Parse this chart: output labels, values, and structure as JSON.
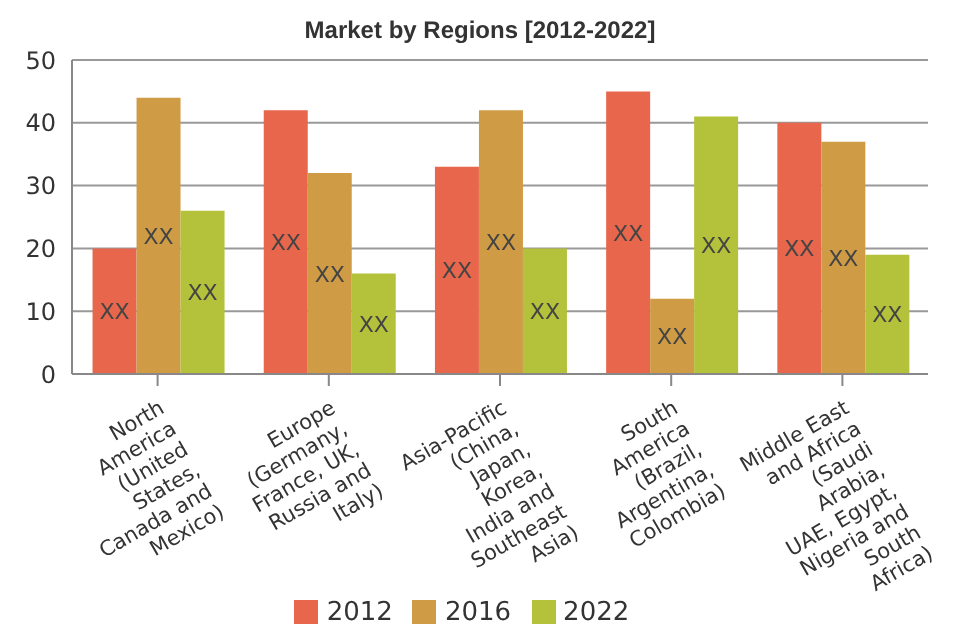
{
  "chart_data": {
    "type": "bar",
    "title": "Market by Regions [2012-2022]",
    "categories": [
      "North America (United States, Canada and Mexico)",
      "Europe (Germany, France, UK, Russia and Italy)",
      "Asia-Pacific (China, Japan, Korea, India and Southeast Asia)",
      "South America (Brazil, Argentina, Colombia)",
      "Middle East and Africa (Saudi Arabia, UAE, Egypt, Nigeria and South Africa)"
    ],
    "series": [
      {
        "name": "2012",
        "color": "#e8664c",
        "values": [
          20,
          42,
          33,
          45,
          40
        ],
        "value_labels": [
          "XX",
          "XX",
          "XX",
          "XX",
          "XX"
        ]
      },
      {
        "name": "2016",
        "color": "#cf9c45",
        "values": [
          44,
          32,
          42,
          12,
          37
        ],
        "value_labels": [
          "XX",
          "XX",
          "XX",
          "XX",
          "XX"
        ]
      },
      {
        "name": "2022",
        "color": "#b4c13b",
        "values": [
          26,
          16,
          20,
          41,
          19
        ],
        "value_labels": [
          "XX",
          "XX",
          "XX",
          "XX",
          "XX"
        ]
      }
    ],
    "ylim": [
      0,
      50
    ],
    "yticks": [
      0,
      10,
      20,
      30,
      40,
      50
    ],
    "grid": "y",
    "legend": "bottom"
  }
}
